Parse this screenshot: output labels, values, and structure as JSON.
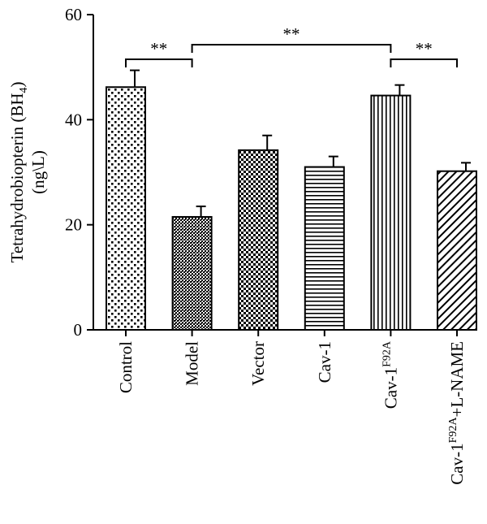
{
  "chart_data": {
    "type": "bar",
    "ylabel_line1_main": "Tetrahydrobiopterin (BH",
    "ylabel_line1_sub": "4",
    "ylabel_line1_end": ")",
    "ylabel_line2": "(ng\\L)",
    "ylim": [
      0,
      60
    ],
    "yticks": [
      "0",
      "20",
      "40",
      "60"
    ],
    "categories": [
      {
        "main": "Control",
        "sup": "",
        "suffix": ""
      },
      {
        "main": "Model",
        "sup": "",
        "suffix": ""
      },
      {
        "main": "Vector",
        "sup": "",
        "suffix": ""
      },
      {
        "main": "Cav-1",
        "sup": "",
        "suffix": ""
      },
      {
        "main": "Cav-1",
        "sup": "F92A",
        "suffix": ""
      },
      {
        "main": "Cav-1",
        "sup": "F92A",
        "suffix": "+L-NAME"
      }
    ],
    "values": [
      46.2,
      21.5,
      34.2,
      31.0,
      44.6,
      30.2
    ],
    "errors": [
      3.2,
      2.0,
      2.8,
      2.0,
      2.0,
      1.6
    ],
    "patterns": [
      "dots",
      "crosshatch",
      "checker",
      "horizontal",
      "vertical",
      "diagonal"
    ],
    "significance": [
      {
        "from": 0,
        "to": 1,
        "label": "**"
      },
      {
        "from": 1,
        "to": 4,
        "label": "**"
      },
      {
        "from": 4,
        "to": 5,
        "label": "**"
      }
    ]
  }
}
